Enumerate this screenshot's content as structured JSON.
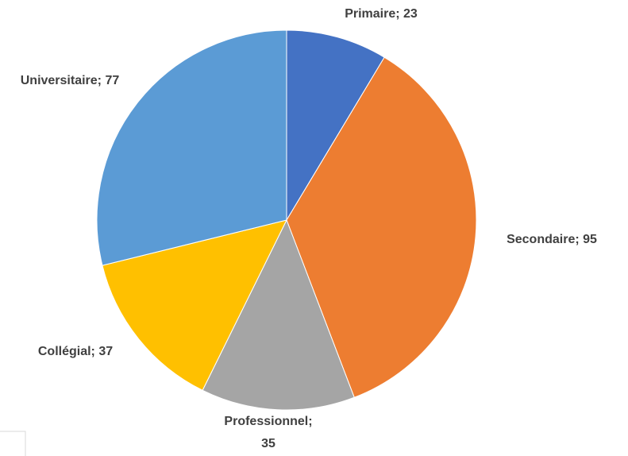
{
  "chart_data": {
    "type": "pie",
    "categories": [
      "Primaire",
      "Secondaire",
      "Professionnel",
      "Collégial",
      "Universitaire"
    ],
    "values": [
      23,
      95,
      35,
      37,
      77
    ],
    "value_labels": [
      "Primaire; 23",
      "Secondaire; 95",
      "Professionnel; 35",
      "Collégial; 37",
      "Universitaire; 77"
    ],
    "colors": [
      "#4472c4",
      "#ed7d31",
      "#a5a5a5",
      "#ffc000",
      "#5b9bd5"
    ]
  }
}
